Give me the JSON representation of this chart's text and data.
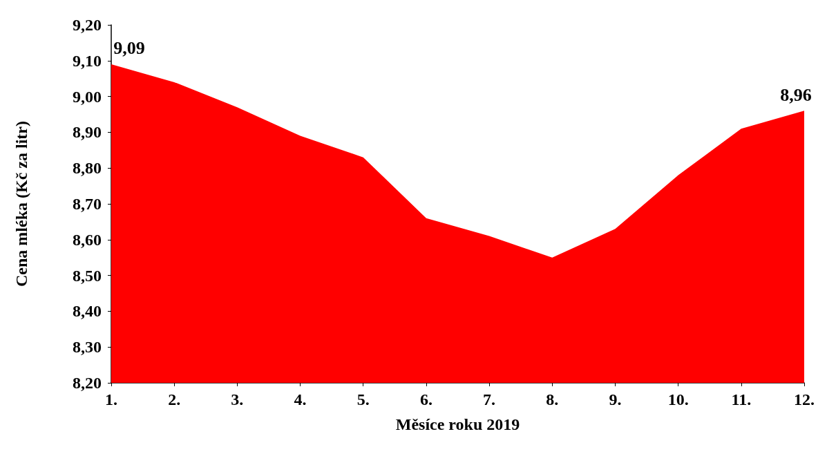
{
  "chart_data": {
    "type": "area",
    "xlabel": "Měsíce roku 2019",
    "ylabel": "Cena mléka (Kč za litr)",
    "categories": [
      "1.",
      "2.",
      "3.",
      "4.",
      "5.",
      "6.",
      "7.",
      "8.",
      "9.",
      "10.",
      "11.",
      "12."
    ],
    "series": [
      {
        "color": "#ff0000",
        "values": [
          9.09,
          9.04,
          8.97,
          8.89,
          8.83,
          8.66,
          8.61,
          8.55,
          8.63,
          8.78,
          8.91,
          8.96
        ],
        "value_labels": [
          "9,09",
          null,
          null,
          null,
          null,
          null,
          null,
          null,
          null,
          null,
          null,
          "8,96"
        ]
      }
    ],
    "ylim": [
      8.2,
      9.2
    ],
    "yticks": [
      {
        "value": 8.2,
        "label": "8,20"
      },
      {
        "value": 8.3,
        "label": "8,30"
      },
      {
        "value": 8.4,
        "label": "8,40"
      },
      {
        "value": 8.5,
        "label": "8,50"
      },
      {
        "value": 8.6,
        "label": "8,60"
      },
      {
        "value": 8.7,
        "label": "8,70"
      },
      {
        "value": 8.8,
        "label": "8,80"
      },
      {
        "value": 8.9,
        "label": "8,90"
      },
      {
        "value": 9.0,
        "label": "9,00"
      },
      {
        "value": 9.1,
        "label": "9,10"
      },
      {
        "value": 9.2,
        "label": "9,20"
      }
    ],
    "grid": false
  }
}
